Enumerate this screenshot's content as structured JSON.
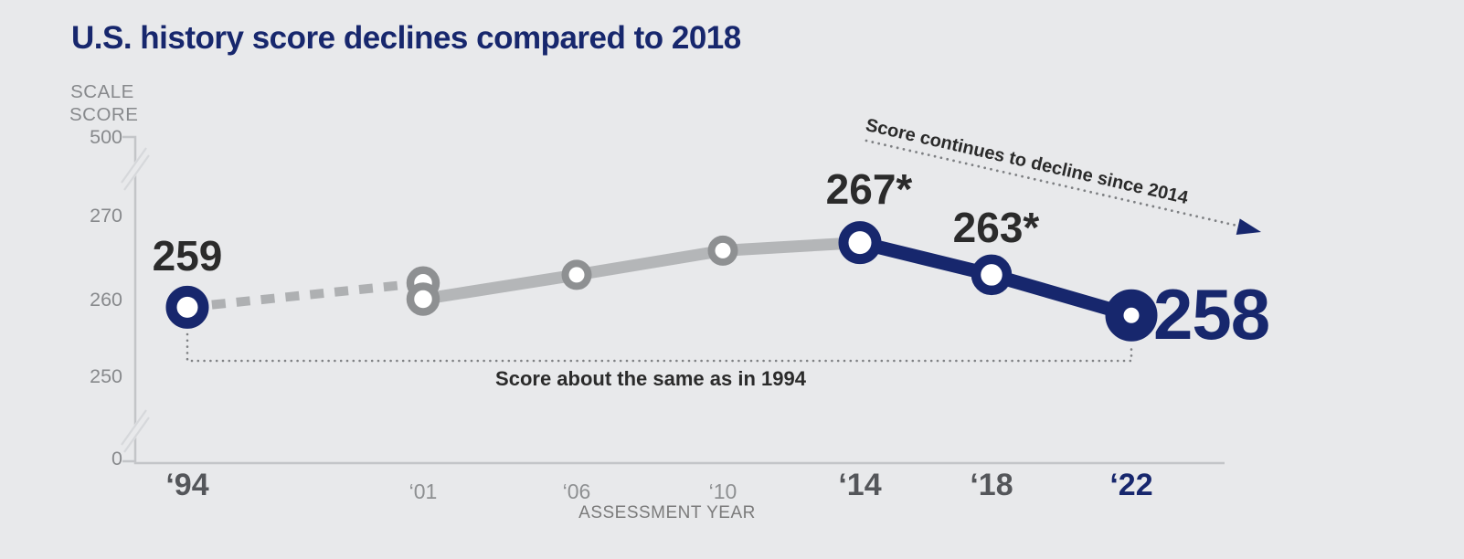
{
  "chart_data": {
    "type": "line",
    "title": "U.S. history score declines compared to 2018",
    "xlabel": "ASSESSMENT YEAR",
    "ylabel": "SCALE SCORE",
    "y_ticks": [
      500,
      270,
      260,
      250,
      0
    ],
    "y_tick_labels": [
      "500",
      "270",
      "260",
      "250",
      "0"
    ],
    "x_tick_labels": [
      "‘94",
      "‘01",
      "‘06",
      "‘10",
      "‘14",
      "‘18",
      "‘22"
    ],
    "years": [
      1994,
      2001,
      2006,
      2010,
      2014,
      2018,
      2022
    ],
    "axis_breaks_between": [
      [
        270,
        500
      ],
      [
        0,
        250
      ]
    ],
    "lines": [
      {
        "name": "dashed-trend-1994-2001",
        "style": "dashed",
        "color": "gray",
        "points": [
          [
            1994,
            259
          ],
          [
            2001,
            262
          ]
        ]
      },
      {
        "name": "gray-trend-2001-2014",
        "style": "solid",
        "color": "gray",
        "points": [
          [
            2001,
            260
          ],
          [
            2006,
            263
          ],
          [
            2010,
            266
          ],
          [
            2014,
            267
          ]
        ]
      },
      {
        "name": "navy-decline-2014-2022",
        "style": "solid",
        "color": "navy",
        "points": [
          [
            2014,
            267
          ],
          [
            2018,
            263
          ],
          [
            2022,
            258
          ]
        ]
      }
    ],
    "points": [
      {
        "year": 1994,
        "score": 259,
        "marker": "navy",
        "label_text": "259"
      },
      {
        "year": 2001,
        "score": 262,
        "marker": "gray"
      },
      {
        "year": 2001,
        "score": 260,
        "marker": "gray"
      },
      {
        "year": 2006,
        "score": 263,
        "marker": "gray"
      },
      {
        "year": 2010,
        "score": 266,
        "marker": "gray"
      },
      {
        "year": 2014,
        "score": 267,
        "marker": "navy",
        "label_text": "267*"
      },
      {
        "year": 2018,
        "score": 263,
        "marker": "navy",
        "label_text": "263*"
      },
      {
        "year": 2022,
        "score": 258,
        "marker": "navy",
        "label_text": "258"
      }
    ],
    "annotations": [
      {
        "text": "Score continues to decline since 2014"
      },
      {
        "text": "Score about the same as in 1994"
      }
    ]
  },
  "colors": {
    "navy": "#17276d",
    "dark_text": "#2b2b2b",
    "gray_line": "#b4b6b8",
    "gray_marker": "#8e9092",
    "dashed_line": "#aeb0b2",
    "axis": "#c3c5c8",
    "break_slash": "#d6d8db",
    "dotted": "#7e8083",
    "background": "#e8e9eb"
  }
}
